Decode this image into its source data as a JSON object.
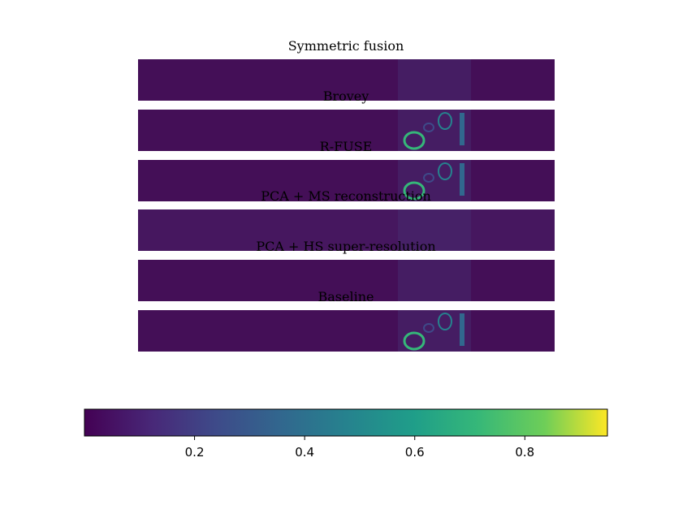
{
  "chart_data": {
    "type": "image-grid",
    "title": "Symmetric fusion",
    "panels": [
      "Brovey",
      "R-FUSE",
      "PCA + MS reconstruction",
      "PCA + HS super-resolution",
      "Baseline"
    ],
    "colormap": "viridis",
    "colorbar": {
      "lim": [
        0,
        0.95
      ],
      "ticks": [
        0.2,
        0.4,
        0.6,
        0.8
      ]
    }
  }
}
